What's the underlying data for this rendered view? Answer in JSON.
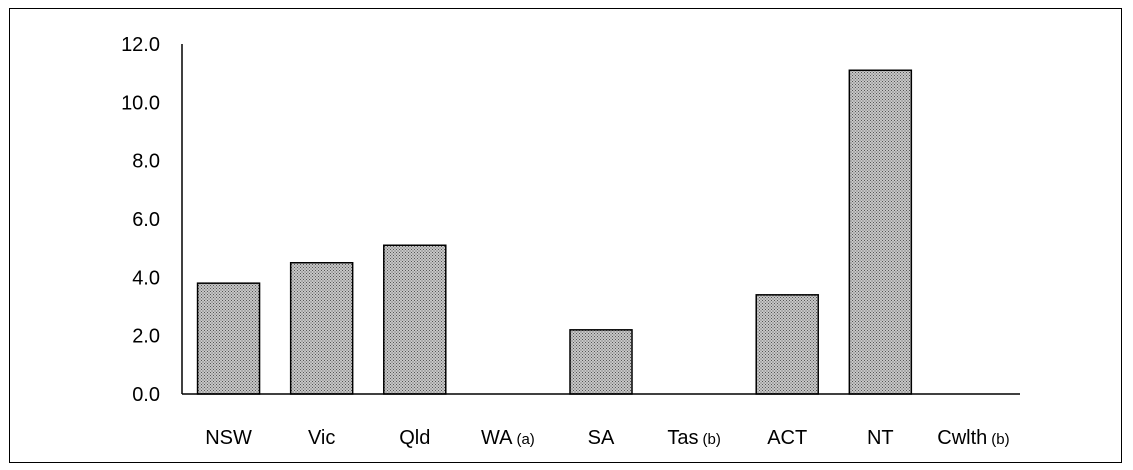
{
  "chart_data": {
    "type": "bar",
    "title": "",
    "xlabel": "",
    "ylabel": "",
    "categories": [
      "NSW",
      "Vic",
      "Qld",
      "WA",
      "SA",
      "Tas",
      "ACT",
      "NT",
      "Cwlth"
    ],
    "category_notes": [
      "",
      "",
      "",
      "(a)",
      "",
      "(b)",
      "",
      "",
      "(b)"
    ],
    "values": [
      3.8,
      4.5,
      5.1,
      null,
      2.2,
      null,
      3.4,
      11.1,
      null
    ],
    "ylim": [
      0,
      12
    ],
    "yticks": [
      "0.0",
      "2.0",
      "4.0",
      "6.0",
      "8.0",
      "10.0",
      "12.0"
    ],
    "grid": false,
    "legend": "none",
    "colors": {
      "bar_fill": "#b3b3b3",
      "bar_hatch": "#606060",
      "bar_stroke": "#000000",
      "axis": "#000000"
    }
  }
}
